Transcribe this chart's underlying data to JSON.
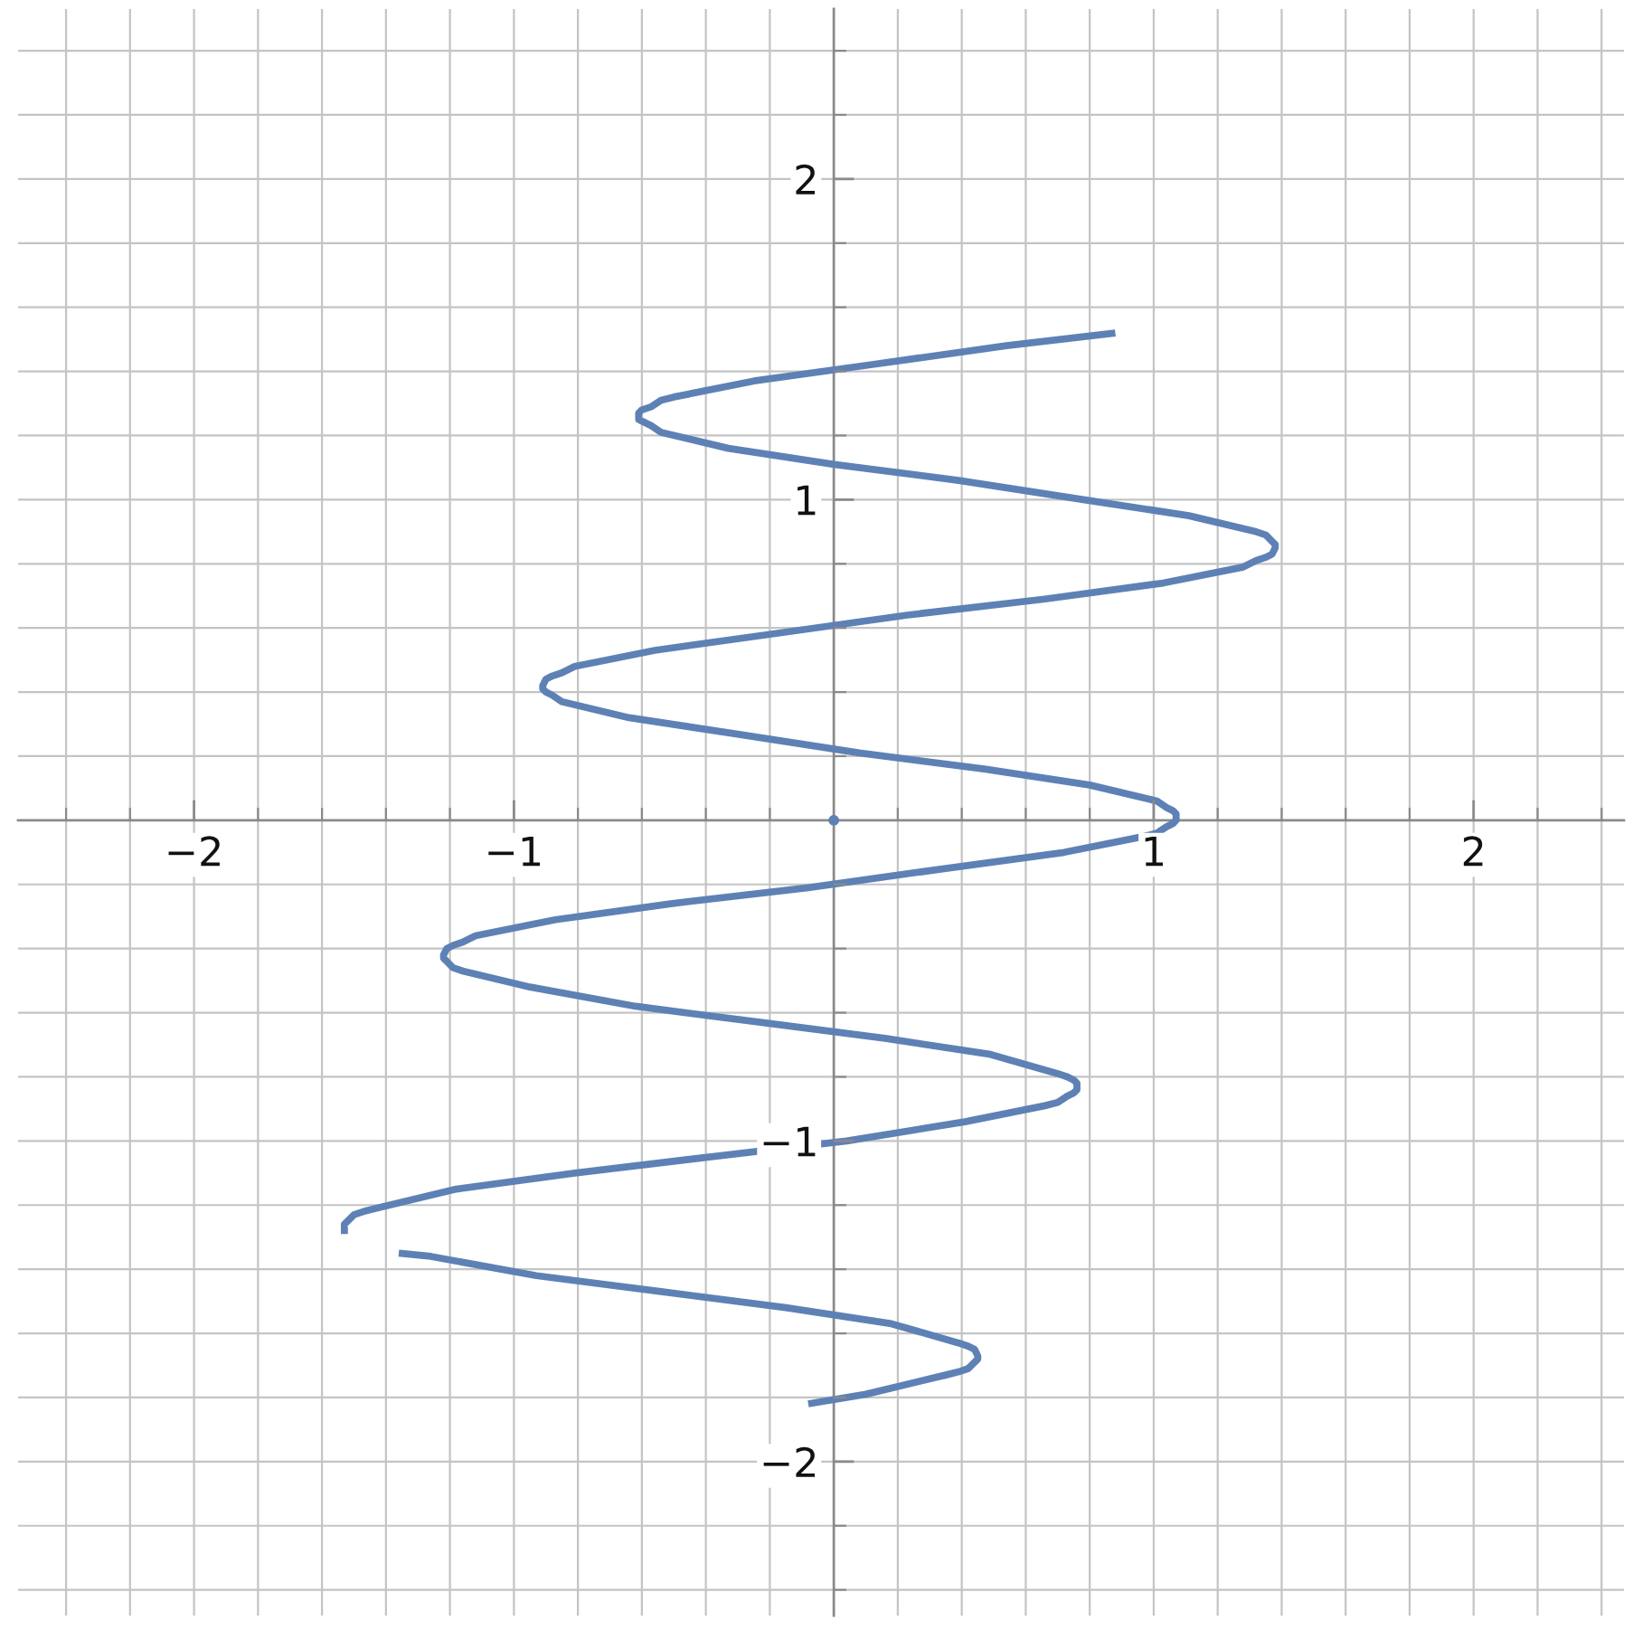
{
  "chart_data": {
    "type": "line",
    "line_style": "solid",
    "grid": true,
    "series": [
      {
        "color": "#5e81b5",
        "x": [
          0.88,
          0.54,
          0.11,
          -0.25,
          -0.5,
          -0.54,
          -0.57,
          -0.6,
          -0.61,
          -0.61,
          -0.59,
          -0.57,
          -0.54,
          -0.33,
          0.0,
          0.39,
          0.78,
          1.11,
          1.32,
          1.35,
          1.37,
          1.38,
          1.38,
          1.37,
          1.35,
          1.32,
          1.28,
          1.03,
          0.66,
          0.23,
          -0.2,
          -0.56,
          -0.81,
          -0.85,
          -0.88,
          -0.9,
          -0.91,
          -0.91,
          -0.9,
          -0.88,
          -0.85,
          -0.64,
          -0.31,
          0.08,
          0.47,
          0.8,
          1.01,
          1.04,
          1.06,
          1.07,
          1.07,
          1.06,
          1.04,
          1.01,
          0.97,
          0.72,
          0.35,
          -0.08,
          -0.51,
          -0.87,
          -1.12,
          -1.16,
          -1.19,
          -1.21,
          -1.22,
          -1.22,
          -1.21,
          -1.19,
          -1.16,
          -0.95,
          -0.62,
          -0.23,
          0.16,
          0.49,
          0.7,
          0.73,
          0.75,
          0.76,
          0.76,
          0.75,
          0.73,
          0.7,
          0.66,
          0.41,
          0.04,
          -0.39,
          -0.81,
          -1.18,
          -1.43,
          -1.47,
          -1.5,
          -1.52,
          -1.53,
          -1.53,
          -1.53
        ],
        "values": [
          1.52,
          1.48,
          1.42,
          1.37,
          1.32,
          1.31,
          1.29,
          1.28,
          1.27,
          1.25,
          1.24,
          1.23,
          1.21,
          1.16,
          1.11,
          1.06,
          1.0,
          0.95,
          0.9,
          0.89,
          0.87,
          0.86,
          0.85,
          0.83,
          0.82,
          0.81,
          0.79,
          0.74,
          0.69,
          0.64,
          0.58,
          0.53,
          0.48,
          0.46,
          0.45,
          0.44,
          0.42,
          0.41,
          0.4,
          0.39,
          0.37,
          0.32,
          0.27,
          0.21,
          0.16,
          0.11,
          0.06,
          0.04,
          0.03,
          0.02,
          0.0,
          -0.01,
          -0.02,
          -0.04,
          -0.05,
          -0.1,
          -0.15,
          -0.21,
          -0.26,
          -0.31,
          -0.36,
          -0.38,
          -0.39,
          -0.4,
          -0.42,
          -0.43,
          -0.44,
          -0.46,
          -0.47,
          -0.52,
          -0.58,
          -0.63,
          -0.68,
          -0.73,
          -0.79,
          -0.8,
          -0.81,
          -0.82,
          -0.84,
          -0.85,
          -0.86,
          -0.88,
          -0.89,
          -0.94,
          -1.0,
          -1.05,
          -1.1,
          -1.15,
          -1.21,
          -1.22,
          -1.23,
          -1.25,
          -1.26,
          -1.27,
          -1.29
        ]
      },
      {
        "color": "#5e81b5",
        "x": [
          -1.36,
          -1.26,
          -0.93,
          -0.54,
          -0.15,
          0.18,
          0.39,
          0.42,
          0.44,
          0.45,
          0.45,
          0.44,
          0.42,
          0.39,
          0.35,
          0.1,
          -0.08
        ],
        "values": [
          -1.35,
          -1.36,
          -1.42,
          -1.47,
          -1.52,
          -1.57,
          -1.63,
          -1.64,
          -1.65,
          -1.67,
          -1.68,
          -1.69,
          -1.71,
          -1.72,
          -1.73,
          -1.79,
          -1.82
        ]
      },
      {
        "type": "scatter",
        "marker": "circle",
        "color": "#5e81b5",
        "x": [
          0
        ],
        "values": [
          0
        ]
      }
    ],
    "xlim": [
      -2.55,
      2.47
    ],
    "ylim": [
      -2.48,
      2.53
    ],
    "xticks": [
      {
        "value": -2.4,
        "label": null
      },
      {
        "value": -2.2,
        "label": null
      },
      {
        "value": -2,
        "label": "−2"
      },
      {
        "value": -1.8,
        "label": null
      },
      {
        "value": -1.6,
        "label": null
      },
      {
        "value": -1.4,
        "label": null
      },
      {
        "value": -1.2,
        "label": null
      },
      {
        "value": -1,
        "label": "−1"
      },
      {
        "value": -0.8,
        "label": null
      },
      {
        "value": -0.6,
        "label": null
      },
      {
        "value": -0.4,
        "label": null
      },
      {
        "value": -0.2,
        "label": null
      },
      {
        "value": 0.2,
        "label": null
      },
      {
        "value": 0.4,
        "label": null
      },
      {
        "value": 0.6,
        "label": null
      },
      {
        "value": 0.8,
        "label": null
      },
      1,
      {
        "value": 1.2,
        "label": null
      },
      {
        "value": 1.4,
        "label": null
      },
      {
        "value": 1.6,
        "label": null
      },
      {
        "value": 1.8,
        "label": null
      },
      2,
      {
        "value": 2.2,
        "label": null
      },
      {
        "value": 2.4,
        "label": null
      }
    ],
    "yticks": [
      {
        "value": -2.4,
        "label": null
      },
      {
        "value": -2.2,
        "label": null
      },
      {
        "value": -2,
        "label": "−2"
      },
      {
        "value": -1.8,
        "label": null
      },
      {
        "value": -1.6,
        "label": null
      },
      {
        "value": -1.4,
        "label": null
      },
      {
        "value": -1.2,
        "label": null
      },
      {
        "value": -1,
        "label": "−1"
      },
      {
        "value": -0.8,
        "label": null
      },
      {
        "value": -0.6,
        "label": null
      },
      {
        "value": -0.4,
        "label": null
      },
      {
        "value": -0.2,
        "label": null
      },
      {
        "value": 0.2,
        "label": null
      },
      {
        "value": 0.4,
        "label": null
      },
      {
        "value": 0.6,
        "label": null
      },
      {
        "value": 0.8,
        "label": null
      },
      1,
      {
        "value": 1.2,
        "label": null
      },
      {
        "value": 1.4,
        "label": null
      },
      {
        "value": 1.6,
        "label": null
      },
      {
        "value": 1.8,
        "label": null
      },
      2,
      {
        "value": 2.2,
        "label": null
      },
      {
        "value": 2.4,
        "label": null
      }
    ]
  }
}
